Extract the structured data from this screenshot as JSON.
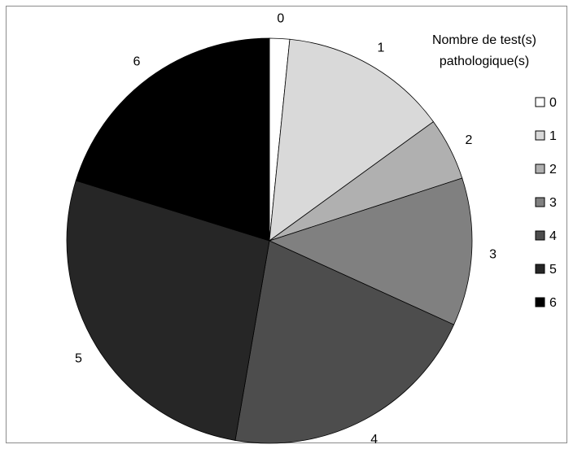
{
  "chart_data": {
    "type": "pie",
    "legend_title_lines": [
      "Nombre de test(s)",
      "pathologique(s)"
    ],
    "legend_placement": "right",
    "start": "top, clockwise",
    "slices": [
      {
        "label": "0",
        "value": 1.6,
        "color": "#ffffff"
      },
      {
        "label": "1",
        "value": 13.4,
        "color": "#d9d9d9"
      },
      {
        "label": "2",
        "value": 5.0,
        "color": "#b0b0b0"
      },
      {
        "label": "3",
        "value": 11.8,
        "color": "#808080"
      },
      {
        "label": "4",
        "value": 20.9,
        "color": "#4d4d4d"
      },
      {
        "label": "5",
        "value": 27.1,
        "color": "#262626"
      },
      {
        "label": "6",
        "value": 20.2,
        "color": "#000000"
      }
    ]
  }
}
